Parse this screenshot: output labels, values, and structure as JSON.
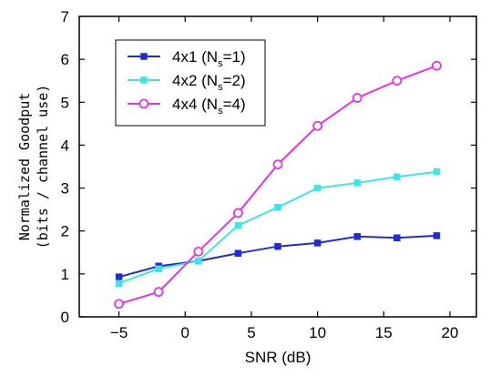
{
  "chart_data": {
    "type": "line",
    "xlabel": "SNR (dB)",
    "ylabel_line1": "Normalized Goodput",
    "ylabel_line2": "(bits / channel use)",
    "xlim": [
      -8,
      22
    ],
    "ylim": [
      0,
      7
    ],
    "xticks": [
      -5,
      0,
      5,
      10,
      15,
      20
    ],
    "xtick_labels": [
      "−5",
      "0",
      "5",
      "10",
      "15",
      "20"
    ],
    "yticks": [
      0,
      1,
      2,
      3,
      4,
      5,
      6,
      7
    ],
    "ytick_labels": [
      "0",
      "1",
      "2",
      "3",
      "4",
      "5",
      "6",
      "7"
    ],
    "grid": false,
    "legend_position": "top-left",
    "x": [
      -5,
      -2,
      1,
      4,
      7,
      10,
      13,
      16,
      19
    ],
    "series": [
      {
        "name": "4x1 (Ns=1)",
        "label_main": "4x1  (N",
        "label_sub": "s",
        "label_end": "=1)",
        "color": "#1f2bd6",
        "marker": "filled-square",
        "values": [
          0.93,
          1.18,
          1.3,
          1.48,
          1.64,
          1.72,
          1.87,
          1.84,
          1.89
        ]
      },
      {
        "name": "4x2 (Ns=2)",
        "label_main": "4x2  (N",
        "label_sub": "s",
        "label_end": "=2)",
        "color": "#3de6e6",
        "marker": "filled-square",
        "values": [
          0.78,
          1.12,
          1.3,
          2.13,
          2.55,
          3.0,
          3.12,
          3.26,
          3.38
        ]
      },
      {
        "name": "4x4 (Ns=4)",
        "label_main": "4x4  (N",
        "label_sub": "s",
        "label_end": "=4)",
        "color": "#e633e6",
        "marker": "open-circle",
        "values": [
          0.3,
          0.58,
          1.52,
          2.42,
          3.55,
          4.45,
          5.1,
          5.5,
          5.85
        ]
      }
    ]
  }
}
